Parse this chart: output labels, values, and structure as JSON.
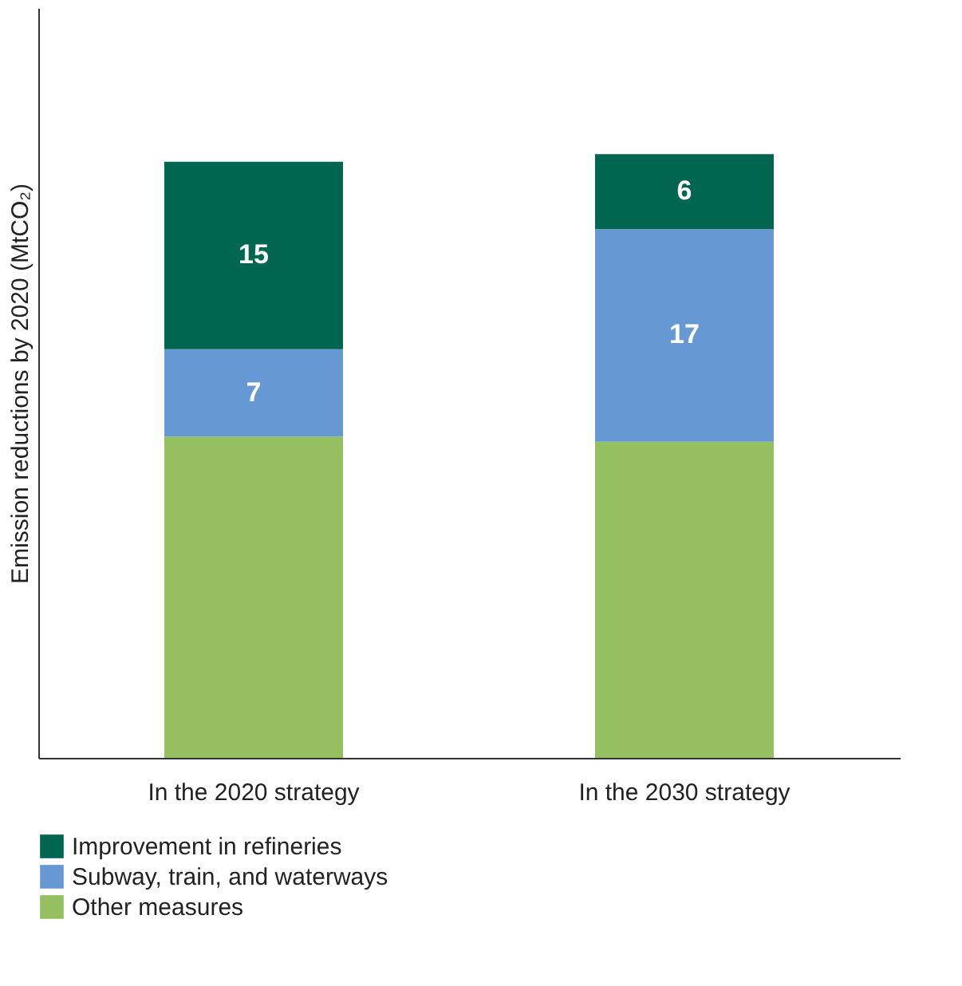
{
  "chart_data": {
    "type": "bar",
    "stacked": true,
    "ylabel": "Emission reductions by 2020 (MtCO₂)",
    "categories": [
      "In the 2020 strategy",
      "In the 2030 strategy"
    ],
    "ylim": [
      0,
      60
    ],
    "tick_labels": "x",
    "grid": false,
    "legend": "bottom",
    "series": [
      {
        "name": "Other measures",
        "color": "#95c062",
        "values": [
          25.7,
          25.3
        ],
        "value_labels": [
          null,
          null
        ]
      },
      {
        "name": "Subway, train, and waterways",
        "color": "#6699d3",
        "values": [
          7,
          17
        ],
        "value_labels": [
          "7",
          "17"
        ]
      },
      {
        "name": "Improvement in refineries",
        "color": "#00664f",
        "values": [
          15,
          6
        ],
        "value_labels": [
          "15",
          "6"
        ]
      }
    ]
  }
}
